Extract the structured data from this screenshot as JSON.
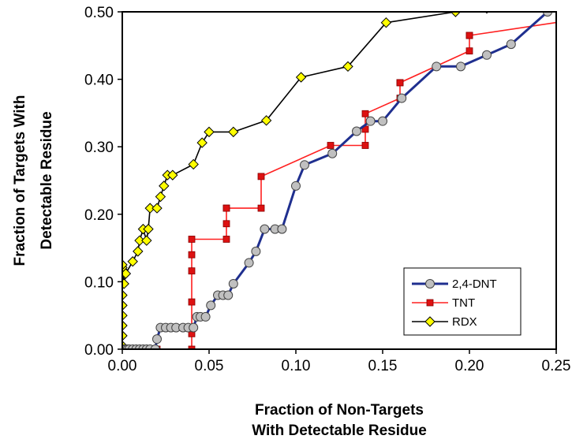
{
  "chart_data": {
    "type": "line",
    "xlabel": [
      "Fraction of Non-Targets",
      "With Detectable Residue"
    ],
    "ylabel": [
      "Fraction of Targets With",
      "Detectable Residue"
    ],
    "xlim": [
      0,
      0.25
    ],
    "ylim": [
      0,
      0.5
    ],
    "x_ticks": [
      "0.00",
      "0.05",
      "0.10",
      "0.15",
      "0.20",
      "0.25"
    ],
    "y_ticks": [
      "0.00",
      "0.10",
      "0.20",
      "0.30",
      "0.40",
      "0.50"
    ],
    "grid": false,
    "legend_position": "bottom-right",
    "series": [
      {
        "name": "2,4-DNT",
        "line_color": "#1f2f8f",
        "marker": "circle",
        "marker_fill": "#c0c0c0",
        "x": [
          0.0,
          0.001,
          0.002,
          0.003,
          0.004,
          0.006,
          0.008,
          0.01,
          0.012,
          0.014,
          0.016,
          0.019,
          0.02,
          0.022,
          0.025,
          0.028,
          0.031,
          0.035,
          0.038,
          0.041,
          0.043,
          0.045,
          0.048,
          0.051,
          0.055,
          0.058,
          0.061,
          0.064,
          0.073,
          0.077,
          0.082,
          0.088,
          0.092,
          0.1,
          0.105,
          0.121,
          0.135,
          0.143,
          0.15,
          0.161,
          0.181,
          0.195,
          0.21,
          0.224,
          0.245
        ],
        "y": [
          0.0,
          0.0,
          0.0,
          0.0,
          0.0,
          0.0,
          0.0,
          0.0,
          0.0,
          0.0,
          0.0,
          0.0,
          0.015,
          0.032,
          0.032,
          0.032,
          0.032,
          0.032,
          0.032,
          0.032,
          0.048,
          0.048,
          0.048,
          0.065,
          0.08,
          0.08,
          0.08,
          0.097,
          0.128,
          0.145,
          0.178,
          0.178,
          0.178,
          0.242,
          0.273,
          0.29,
          0.323,
          0.338,
          0.338,
          0.372,
          0.419,
          0.419,
          0.436,
          0.452,
          0.5
        ]
      },
      {
        "name": "TNT",
        "line_color": "#ff2020",
        "marker": "square",
        "marker_fill": "#dd1111",
        "x": [
          0.0,
          0.02,
          0.04,
          0.04,
          0.04,
          0.04,
          0.04,
          0.04,
          0.06,
          0.06,
          0.06,
          0.06,
          0.08,
          0.08,
          0.12,
          0.14,
          0.14,
          0.14,
          0.16,
          0.16,
          0.16,
          0.2,
          0.2,
          0.2,
          0.26
        ],
        "y": [
          0.0,
          0.0,
          0.0,
          0.023,
          0.07,
          0.116,
          0.14,
          0.163,
          0.163,
          0.186,
          0.209,
          0.209,
          0.209,
          0.256,
          0.302,
          0.302,
          0.326,
          0.349,
          0.372,
          0.395,
          0.395,
          0.442,
          0.465,
          0.465,
          0.488
        ]
      },
      {
        "name": "RDX",
        "line_color": "#000000",
        "marker": "diamond",
        "marker_fill": "#ffff00",
        "x": [
          0.0,
          0.0,
          0.0,
          0.0,
          0.0,
          0.0,
          0.0,
          0.0,
          0.0,
          0.0,
          0.0,
          0.0,
          0.0,
          0.0,
          0.001,
          0.002,
          0.006,
          0.009,
          0.01,
          0.012,
          0.014,
          0.015,
          0.016,
          0.02,
          0.022,
          0.024,
          0.026,
          0.029,
          0.041,
          0.046,
          0.05,
          0.064,
          0.083,
          0.103,
          0.13,
          0.152,
          0.192,
          0.21,
          0.26
        ],
        "y": [
          0.0,
          0.002,
          0.005,
          0.02,
          0.035,
          0.05,
          0.065,
          0.08,
          0.097,
          0.112,
          0.115,
          0.118,
          0.121,
          0.125,
          0.097,
          0.112,
          0.13,
          0.145,
          0.161,
          0.178,
          0.161,
          0.178,
          0.209,
          0.209,
          0.226,
          0.242,
          0.258,
          0.258,
          0.274,
          0.306,
          0.322,
          0.322,
          0.339,
          0.403,
          0.419,
          0.484,
          0.5,
          0.505,
          0.505
        ]
      }
    ]
  }
}
